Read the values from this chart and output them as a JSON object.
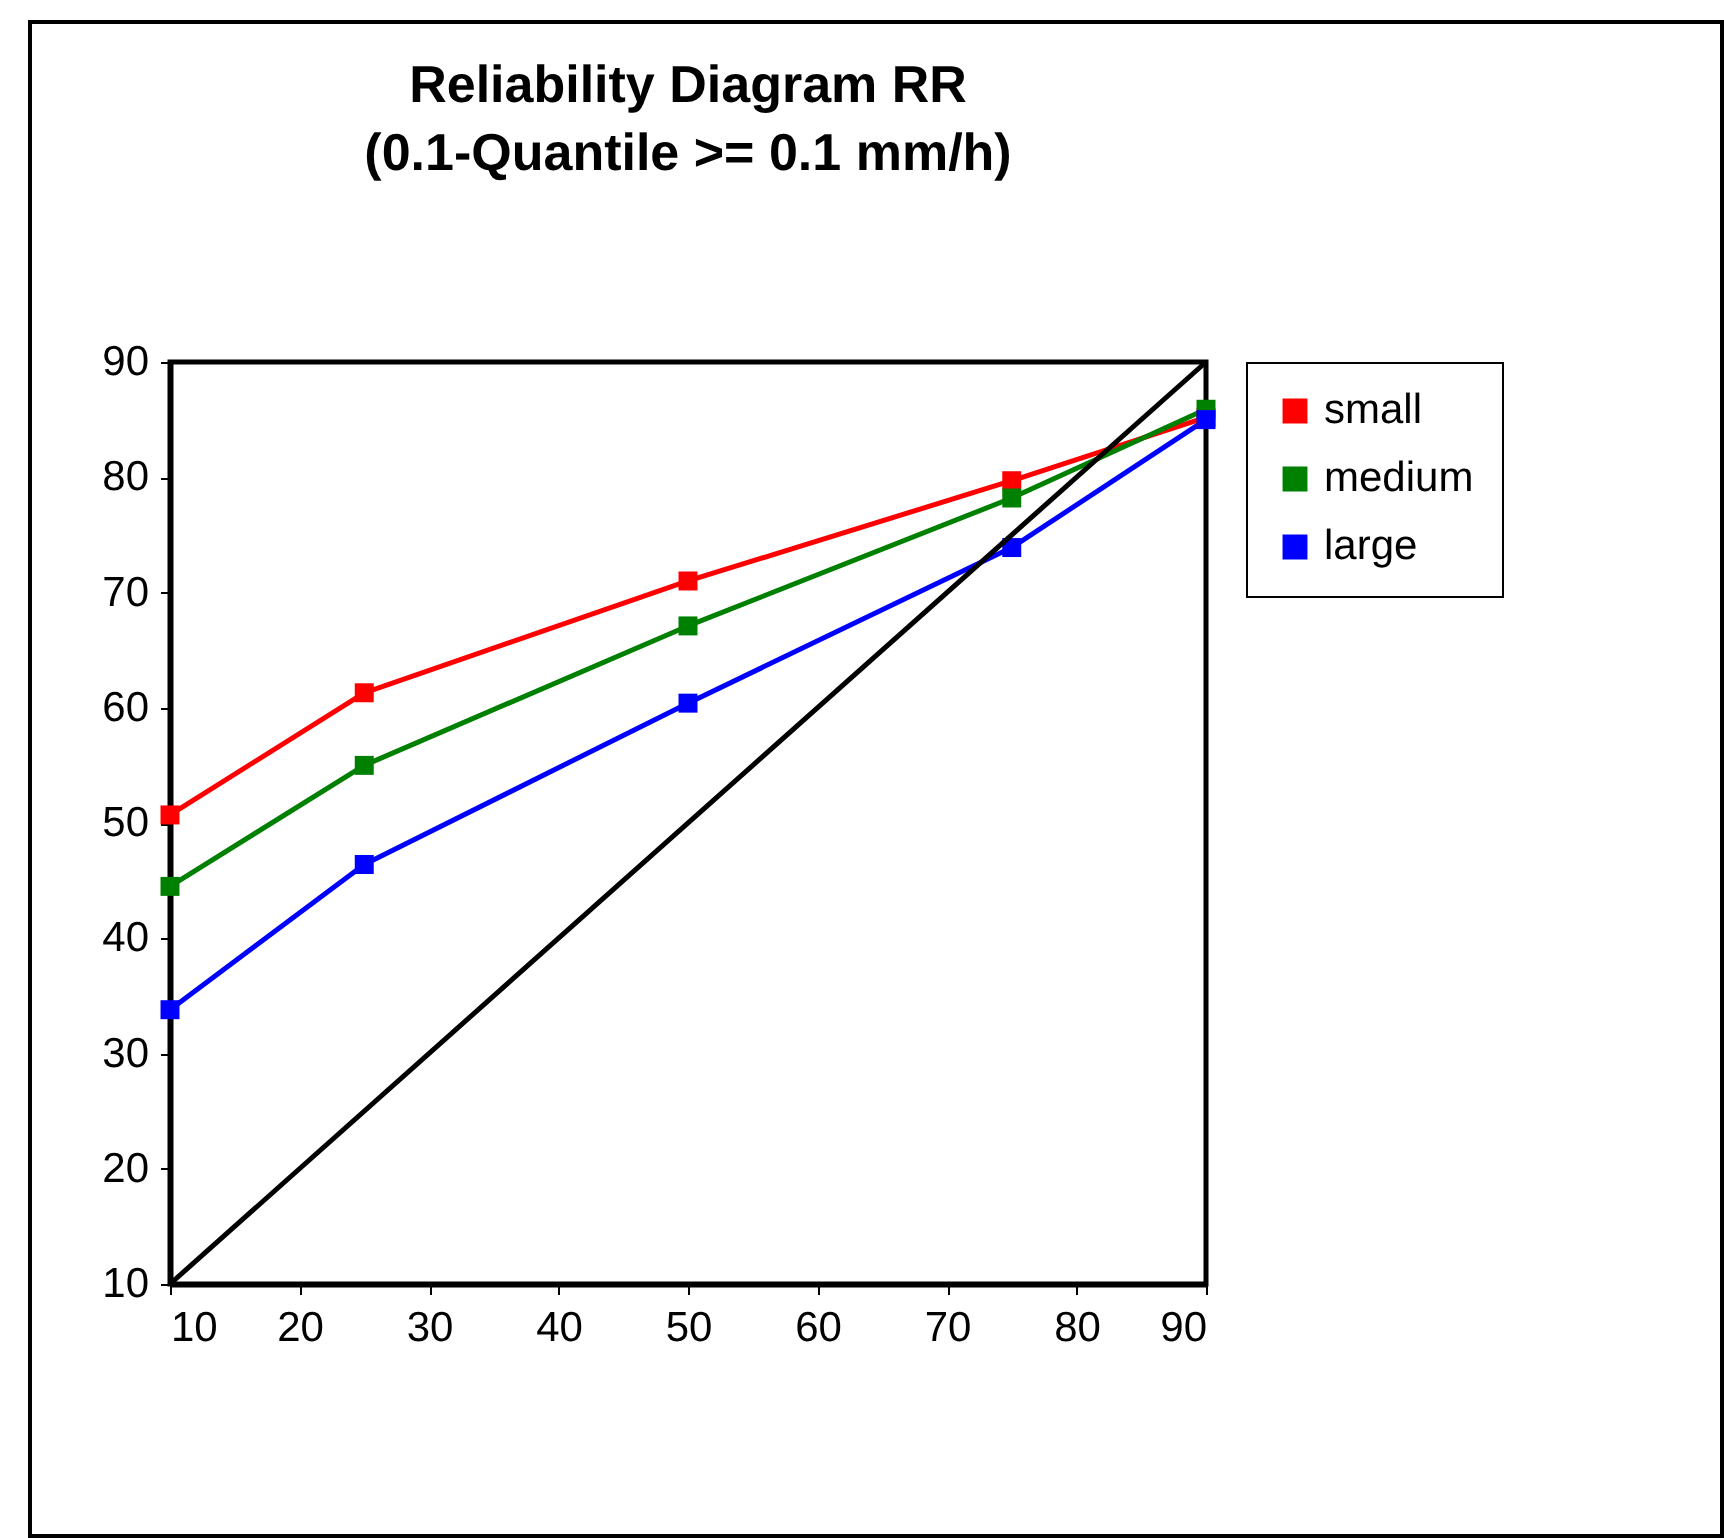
{
  "chart_data": {
    "type": "line",
    "title": "Reliability Diagram RR\n(0.1-Quantile >= 0.1 mm/h)",
    "x": [
      10,
      25,
      50,
      75,
      90
    ],
    "series": [
      {
        "name": "small",
        "color": "#ff0000",
        "values": [
          50.7,
          61.3,
          71.0,
          79.7,
          85.2
        ]
      },
      {
        "name": "medium",
        "color": "#008000",
        "values": [
          44.5,
          55.0,
          67.1,
          78.2,
          85.9
        ]
      },
      {
        "name": "large",
        "color": "#0000ff",
        "values": [
          33.8,
          46.4,
          60.4,
          73.9,
          85.0
        ]
      },
      {
        "color": "#000000",
        "x": [
          10,
          90
        ],
        "values": [
          10,
          90
        ],
        "marker": "none"
      }
    ],
    "xlim": [
      10,
      90
    ],
    "xticks": [
      10,
      20,
      30,
      40,
      50,
      60,
      70,
      80,
      90
    ],
    "ylim": [
      10,
      90
    ],
    "yticks": [
      10,
      20,
      30,
      40,
      50,
      60,
      70,
      80,
      90
    ],
    "marker": "square",
    "legend": "right"
  }
}
